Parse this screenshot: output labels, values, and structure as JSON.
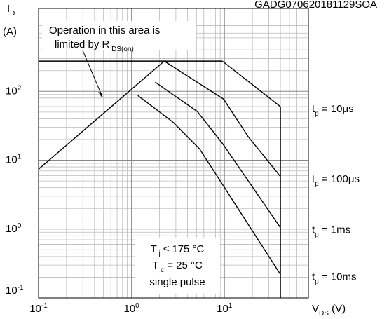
{
  "chart_data": {
    "type": "line",
    "code": "GADG070620181129SOA",
    "y_label": [
      "I",
      "D"
    ],
    "y_unit": "(A)",
    "x_label": [
      "V",
      "DS",
      " (V)"
    ],
    "annotation": {
      "line1": "Operation in this area is",
      "line2": [
        "limited by R",
        " DS(on)"
      ]
    },
    "conditions": {
      "line1": [
        "T",
        " j",
        " ≤ 175 °C"
      ],
      "line2": [
        "T",
        " c",
        " = 25 °C"
      ],
      "line3": "single pulse"
    },
    "log_x": true,
    "log_y": true,
    "grid": true,
    "minor_grid": true,
    "xlim": [
      0.1,
      80
    ],
    "ylim": [
      0.1,
      1600
    ],
    "xticks": [
      {
        "value": 0.1,
        "label": "10",
        "sup": "-1"
      },
      {
        "value": 1,
        "label": "10",
        "sup": "0"
      },
      {
        "value": 10,
        "label": "10",
        "sup": "1"
      }
    ],
    "yticks": [
      {
        "value": 0.1,
        "label": "10",
        "sup": "-1"
      },
      {
        "value": 1,
        "label": "10",
        "sup": "0"
      },
      {
        "value": 10,
        "label": "10",
        "sup": "1"
      },
      {
        "value": 100,
        "label": "10",
        "sup": "2"
      }
    ],
    "series": [
      {
        "color": "#000000",
        "x": [
          0.1,
          2.25
        ],
        "values": [
          7.4,
          275
        ]
      },
      {
        "color": "#000000",
        "x": [
          0.1,
          9.5
        ],
        "values": [
          275,
          275
        ]
      },
      {
        "color": "#000000",
        "x": [
          40,
          40
        ],
        "values": [
          60,
          0.1
        ]
      },
      {
        "label": [
          "t",
          "p",
          " = 10μs"
        ],
        "color": "#000000",
        "x": [
          9.5,
          40
        ],
        "values": [
          275,
          60
        ]
      },
      {
        "label": [
          "t",
          "p",
          " = 100μs"
        ],
        "color": "#000000",
        "x": [
          2.25,
          9.8,
          18,
          40
        ],
        "values": [
          275,
          77,
          22,
          5.8
        ]
      },
      {
        "label": [
          "t",
          "p",
          " = 1ms"
        ],
        "color": "#000000",
        "x": [
          1.8,
          5.1,
          9.5,
          40
        ],
        "values": [
          136,
          51,
          17.6,
          1.05
        ]
      },
      {
        "label": [
          "t",
          "p",
          " = 10ms"
        ],
        "color": "#000000",
        "x": [
          1.17,
          2.8,
          5.4,
          40
        ],
        "values": [
          87,
          35.6,
          14.6,
          0.22
        ]
      }
    ]
  }
}
